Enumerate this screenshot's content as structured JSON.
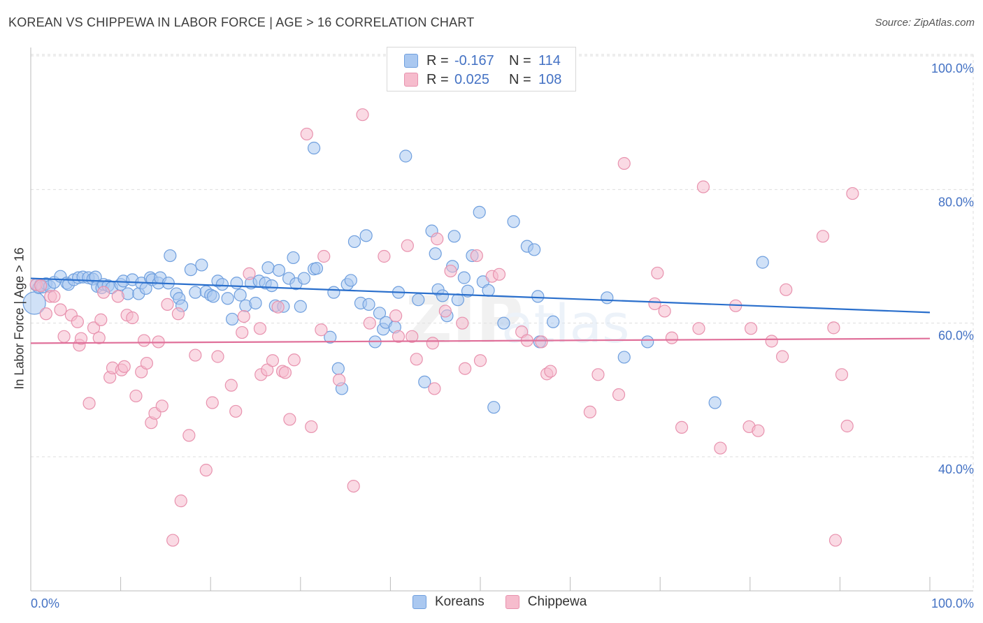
{
  "title": "KOREAN VS CHIPPEWA IN LABOR FORCE | AGE > 16 CORRELATION CHART",
  "source": "Source: ZipAtlas.com",
  "legend_top": [
    {
      "r_label": "R =",
      "r_value": "-0.167",
      "n_label": "N =",
      "n_value": "114"
    },
    {
      "r_label": "R =",
      "r_value": "0.025",
      "n_label": "N =",
      "n_value": "108"
    }
  ],
  "legend_bottom": [
    "Koreans",
    "Chippewa"
  ],
  "colors": {
    "korean_fill": "#aac8f0",
    "korean_stroke": "#6f9fde",
    "korean_line": "#2a6fcc",
    "chippewa_fill": "#f6bccd",
    "chippewa_stroke": "#e892ae",
    "chippewa_line": "#e0709a",
    "tick_label": "#4472c4",
    "grid": "#dedede"
  },
  "chart_data": {
    "type": "scatter",
    "title": "KOREAN VS CHIPPEWA IN LABOR FORCE | AGE > 16 CORRELATION CHART",
    "xlabel": "",
    "ylabel": "In Labor Force | Age > 16",
    "xlim": [
      0,
      100
    ],
    "ylim": [
      20,
      104
    ],
    "x_tick_labels": [
      "0.0%",
      "100.0%"
    ],
    "y_ticks": [
      40,
      60,
      80,
      100
    ],
    "y_tick_labels": [
      "40.0%",
      "60.0%",
      "80.0%",
      "100.0%"
    ],
    "grid": true,
    "legend": "top-center",
    "series": [
      {
        "name": "Koreans",
        "trend": {
          "x": [
            0,
            100
          ],
          "y": [
            66.7,
            61.6
          ]
        },
        "points": [
          [
            0.4,
            63.0
          ],
          [
            0.6,
            65.7
          ],
          [
            0.9,
            65.3
          ],
          [
            1.1,
            65.8
          ],
          [
            1.3,
            65.4
          ],
          [
            1.7,
            65.9
          ],
          [
            2.1,
            65.5
          ],
          [
            2.6,
            66.1
          ],
          [
            3.3,
            67.0
          ],
          [
            4.0,
            66.0
          ],
          [
            4.2,
            65.8
          ],
          [
            4.8,
            66.5
          ],
          [
            5.3,
            66.8
          ],
          [
            5.8,
            66.9
          ],
          [
            6.4,
            66.8
          ],
          [
            6.9,
            66.6
          ],
          [
            7.2,
            66.9
          ],
          [
            7.4,
            65.5
          ],
          [
            7.9,
            65.3
          ],
          [
            8.1,
            65.8
          ],
          [
            8.6,
            65.6
          ],
          [
            9.0,
            65.3
          ],
          [
            10.0,
            65.8
          ],
          [
            10.3,
            66.3
          ],
          [
            10.8,
            64.4
          ],
          [
            11.3,
            66.5
          ],
          [
            12.0,
            64.4
          ],
          [
            12.3,
            66.0
          ],
          [
            12.8,
            65.2
          ],
          [
            13.3,
            66.8
          ],
          [
            13.5,
            66.5
          ],
          [
            14.2,
            66.0
          ],
          [
            14.4,
            66.8
          ],
          [
            15.3,
            66.0
          ],
          [
            15.5,
            70.1
          ],
          [
            16.2,
            64.4
          ],
          [
            16.5,
            63.7
          ],
          [
            16.8,
            62.6
          ],
          [
            17.8,
            68.0
          ],
          [
            18.3,
            64.6
          ],
          [
            19.0,
            68.7
          ],
          [
            19.5,
            64.7
          ],
          [
            20.0,
            64.2
          ],
          [
            20.3,
            64.0
          ],
          [
            20.8,
            66.3
          ],
          [
            21.3,
            65.8
          ],
          [
            21.9,
            63.7
          ],
          [
            22.4,
            60.6
          ],
          [
            22.9,
            66.0
          ],
          [
            23.3,
            64.2
          ],
          [
            23.9,
            62.6
          ],
          [
            24.5,
            66.0
          ],
          [
            25.0,
            63.0
          ],
          [
            25.4,
            66.3
          ],
          [
            26.1,
            66.0
          ],
          [
            26.4,
            68.3
          ],
          [
            26.8,
            65.6
          ],
          [
            27.2,
            62.6
          ],
          [
            27.6,
            67.9
          ],
          [
            28.1,
            62.5
          ],
          [
            28.7,
            66.7
          ],
          [
            29.2,
            69.8
          ],
          [
            29.5,
            65.9
          ],
          [
            30.0,
            62.5
          ],
          [
            30.4,
            66.7
          ],
          [
            31.5,
            68.1
          ],
          [
            31.8,
            68.2
          ],
          [
            31.5,
            86.2
          ],
          [
            33.3,
            57.9
          ],
          [
            33.7,
            64.6
          ],
          [
            34.2,
            53.2
          ],
          [
            34.6,
            50.2
          ],
          [
            35.2,
            65.8
          ],
          [
            35.6,
            66.4
          ],
          [
            36.0,
            72.2
          ],
          [
            36.7,
            63.0
          ],
          [
            37.3,
            73.1
          ],
          [
            37.6,
            62.8
          ],
          [
            38.3,
            57.2
          ],
          [
            38.8,
            61.5
          ],
          [
            39.2,
            59.1
          ],
          [
            39.5,
            60.1
          ],
          [
            40.5,
            59.4
          ],
          [
            40.9,
            64.6
          ],
          [
            41.7,
            85.0
          ],
          [
            43.1,
            63.5
          ],
          [
            43.8,
            51.2
          ],
          [
            44.6,
            73.8
          ],
          [
            45.0,
            70.4
          ],
          [
            45.3,
            65.0
          ],
          [
            45.8,
            64.1
          ],
          [
            46.3,
            61.1
          ],
          [
            46.9,
            68.5
          ],
          [
            47.1,
            73.0
          ],
          [
            47.5,
            63.5
          ],
          [
            48.2,
            66.8
          ],
          [
            48.6,
            64.8
          ],
          [
            49.1,
            70.1
          ],
          [
            49.9,
            76.6
          ],
          [
            50.3,
            66.2
          ],
          [
            50.9,
            64.9
          ],
          [
            51.5,
            47.4
          ],
          [
            52.6,
            60.0
          ],
          [
            53.7,
            75.2
          ],
          [
            55.2,
            71.5
          ],
          [
            56.0,
            71.0
          ],
          [
            56.4,
            64.0
          ],
          [
            56.6,
            57.2
          ],
          [
            58.1,
            60.2
          ],
          [
            64.1,
            63.8
          ],
          [
            66.0,
            54.9
          ],
          [
            68.6,
            57.2
          ],
          [
            76.1,
            48.1
          ],
          [
            81.4,
            69.1
          ]
        ]
      },
      {
        "name": "Chippewa",
        "trend": {
          "x": [
            0,
            100
          ],
          "y": [
            57.0,
            57.7
          ]
        },
        "points": [
          [
            0.6,
            65.8
          ],
          [
            1.1,
            65.6
          ],
          [
            1.7,
            61.4
          ],
          [
            2.2,
            64.0
          ],
          [
            2.6,
            64.0
          ],
          [
            3.3,
            62.0
          ],
          [
            3.7,
            58.0
          ],
          [
            4.5,
            61.2
          ],
          [
            5.2,
            60.2
          ],
          [
            5.4,
            56.7
          ],
          [
            5.6,
            57.7
          ],
          [
            6.5,
            48.0
          ],
          [
            7.0,
            59.3
          ],
          [
            7.6,
            57.8
          ],
          [
            7.8,
            60.5
          ],
          [
            8.1,
            64.6
          ],
          [
            8.8,
            51.9
          ],
          [
            9.1,
            53.3
          ],
          [
            9.7,
            64.0
          ],
          [
            10.1,
            53.0
          ],
          [
            10.4,
            53.5
          ],
          [
            10.7,
            61.2
          ],
          [
            11.3,
            60.8
          ],
          [
            11.7,
            49.1
          ],
          [
            12.3,
            52.7
          ],
          [
            12.6,
            57.4
          ],
          [
            12.9,
            54.0
          ],
          [
            13.4,
            45.1
          ],
          [
            13.8,
            46.5
          ],
          [
            14.2,
            57.2
          ],
          [
            14.6,
            47.6
          ],
          [
            15.2,
            62.8
          ],
          [
            15.8,
            27.5
          ],
          [
            16.4,
            61.4
          ],
          [
            16.7,
            33.4
          ],
          [
            17.6,
            43.2
          ],
          [
            18.3,
            55.2
          ],
          [
            19.5,
            38.0
          ],
          [
            20.2,
            48.1
          ],
          [
            20.8,
            55.0
          ],
          [
            22.3,
            50.7
          ],
          [
            22.8,
            46.8
          ],
          [
            23.5,
            58.6
          ],
          [
            23.7,
            61.0
          ],
          [
            24.3,
            67.4
          ],
          [
            25.5,
            59.2
          ],
          [
            25.6,
            52.3
          ],
          [
            26.3,
            53.0
          ],
          [
            26.9,
            54.4
          ],
          [
            27.5,
            62.4
          ],
          [
            28.0,
            52.8
          ],
          [
            28.3,
            52.6
          ],
          [
            28.8,
            45.6
          ],
          [
            29.3,
            54.5
          ],
          [
            30.7,
            88.3
          ],
          [
            31.2,
            44.5
          ],
          [
            32.3,
            59.0
          ],
          [
            32.6,
            70.0
          ],
          [
            34.3,
            51.5
          ],
          [
            36.9,
            91.2
          ],
          [
            37.7,
            60.0
          ],
          [
            39.3,
            70.0
          ],
          [
            40.6,
            61.1
          ],
          [
            40.9,
            58.0
          ],
          [
            41.9,
            71.6
          ],
          [
            42.4,
            58.0
          ],
          [
            42.9,
            54.6
          ],
          [
            44.7,
            57.0
          ],
          [
            44.9,
            50.2
          ],
          [
            45.2,
            72.6
          ],
          [
            46.1,
            61.8
          ],
          [
            46.7,
            67.8
          ],
          [
            48.0,
            60.0
          ],
          [
            48.3,
            53.2
          ],
          [
            49.6,
            70.1
          ],
          [
            50.0,
            54.4
          ],
          [
            51.3,
            67.0
          ],
          [
            52.1,
            67.3
          ],
          [
            54.6,
            58.7
          ],
          [
            55.2,
            57.4
          ],
          [
            56.8,
            57.2
          ],
          [
            57.4,
            52.4
          ],
          [
            57.8,
            52.8
          ],
          [
            62.2,
            46.7
          ],
          [
            63.1,
            52.3
          ],
          [
            65.4,
            49.3
          ],
          [
            66.0,
            83.9
          ],
          [
            69.4,
            62.9
          ],
          [
            69.7,
            67.5
          ],
          [
            70.5,
            61.8
          ],
          [
            71.3,
            57.8
          ],
          [
            72.4,
            44.4
          ],
          [
            74.3,
            59.2
          ],
          [
            74.8,
            80.4
          ],
          [
            76.7,
            41.3
          ],
          [
            78.4,
            62.6
          ],
          [
            79.9,
            44.5
          ],
          [
            80.1,
            59.2
          ],
          [
            80.9,
            43.9
          ],
          [
            82.4,
            57.3
          ],
          [
            83.6,
            55.0
          ],
          [
            84.0,
            65.0
          ],
          [
            88.1,
            73.0
          ],
          [
            89.3,
            59.3
          ],
          [
            89.5,
            27.5
          ],
          [
            90.2,
            52.3
          ],
          [
            90.8,
            44.6
          ],
          [
            91.4,
            79.4
          ],
          [
            35.9,
            35.6
          ]
        ]
      }
    ]
  }
}
